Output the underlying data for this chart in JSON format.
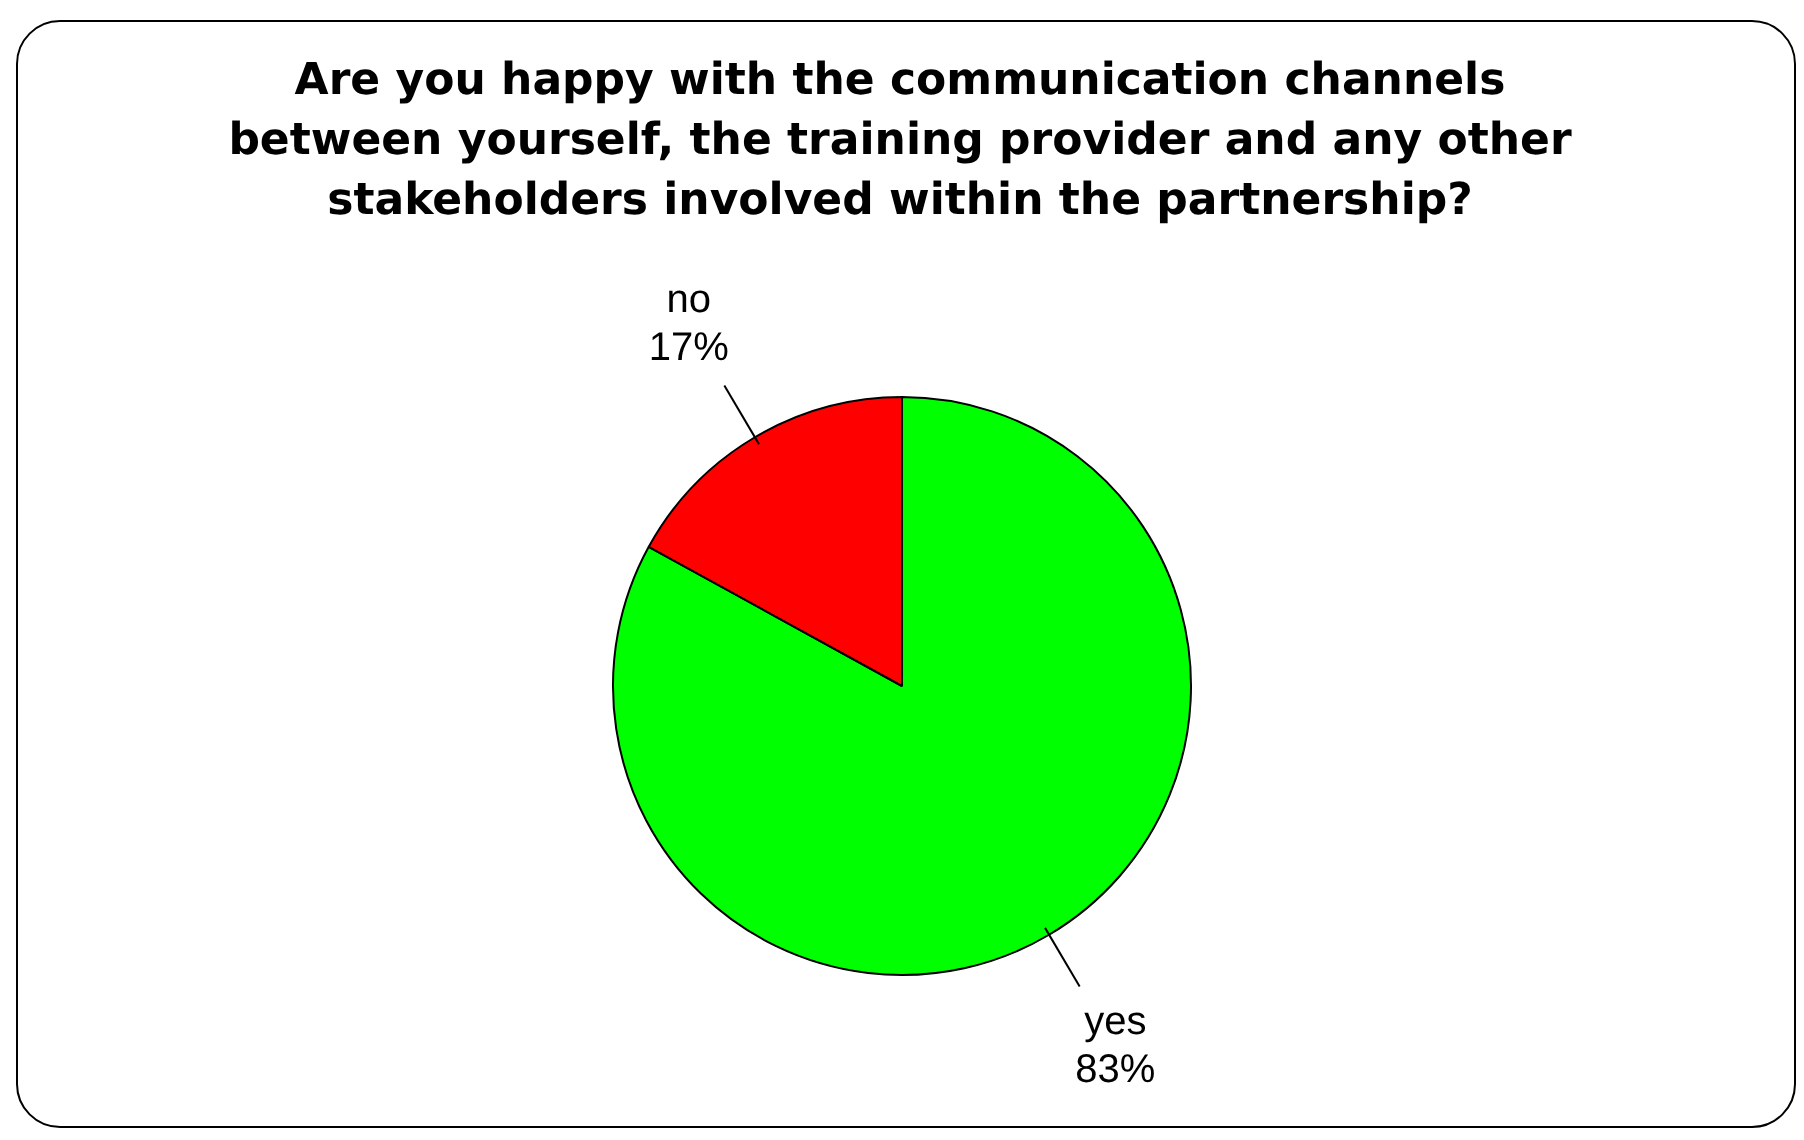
{
  "chart_data": {
    "type": "pie",
    "title": "Are you happy with the communication channels between yourself, the training provider and any other stakeholders involved within the partnership?",
    "categories": [
      "yes",
      "no"
    ],
    "values": [
      83,
      17
    ],
    "value_labels": [
      "83%",
      "17%"
    ],
    "colors": [
      "#00ff00",
      "#ff0000"
    ],
    "legend": false
  }
}
